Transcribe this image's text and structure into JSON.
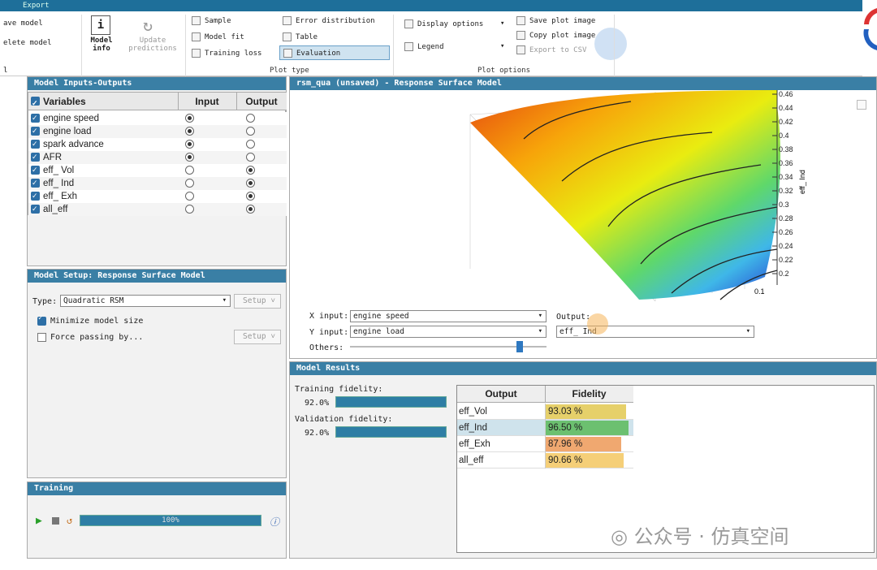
{
  "topbar": {
    "title": "Export"
  },
  "ribbon": {
    "left_items": [
      "ave model",
      "elete model",
      "l"
    ],
    "model_info": "Model\ninfo",
    "update_predictions": "Update\npredictions",
    "plot_type_items": [
      "Sample",
      "Model fit",
      "Training loss",
      "Error distribution",
      "Table",
      "Evaluation"
    ],
    "plot_type_label": "Plot type",
    "plot_option_items": [
      "Display options",
      "Legend",
      "Save plot image",
      "Copy plot image",
      "Export to CSV"
    ],
    "plot_options_label": "Plot options"
  },
  "inputs_outputs": {
    "title": "Model Inputs-Outputs",
    "headers": [
      "Variables",
      "Input",
      "Output"
    ],
    "rows": [
      {
        "name": "engine speed",
        "input": true
      },
      {
        "name": "engine load",
        "input": true
      },
      {
        "name": "spark advance",
        "input": true
      },
      {
        "name": "AFR",
        "input": true
      },
      {
        "name": "eff_ Vol",
        "input": false
      },
      {
        "name": "eff_ Ind",
        "input": false
      },
      {
        "name": "eff_ Exh",
        "input": false
      },
      {
        "name": "all_eff",
        "input": false
      }
    ]
  },
  "plot": {
    "title": "rsm_qua (unsaved) - Response Surface Model",
    "z_label": "eff_ Ind",
    "z_ticks": [
      "0.46",
      "0.44",
      "0.42",
      "0.4",
      "0.38",
      "0.36",
      "0.34",
      "0.32",
      "0.3",
      "0.28",
      "0.26",
      "0.24",
      "0.22",
      "0.2"
    ],
    "x_tick": "0.1"
  },
  "axis_controls": {
    "x_label": "X input:",
    "x_value": "engine speed",
    "y_label": "Y input:",
    "y_value": "engine load",
    "others_label": "Others:",
    "output_label": "Output:",
    "output_value": "eff_ Ind"
  },
  "setup": {
    "title": "Model Setup: Response Surface Model",
    "type_label": "Type:",
    "type_value": "Quadratic RSM",
    "setup_btn": "Setup",
    "minimize": "Minimize model size",
    "force": "Force passing by..."
  },
  "training": {
    "title": "Training",
    "progress": "100%",
    "progress_value": 1.0
  },
  "results": {
    "title": "Model Results",
    "training_fidelity_label": "Training fidelity:",
    "training_fidelity": "92.0%",
    "validation_fidelity_label": "Validation fidelity:",
    "validation_fidelity": "92.0%",
    "headers": [
      "Output",
      "Fidelity"
    ],
    "rows": [
      {
        "output": "eff_Vol",
        "fidelity": "93.03 %",
        "color": "#e6d06a",
        "frac": 0.93
      },
      {
        "output": "eff_Ind",
        "fidelity": "96.50 %",
        "color": "#6cc070",
        "frac": 0.965
      },
      {
        "output": "eff_Exh",
        "fidelity": "87.96 %",
        "color": "#f0a870",
        "frac": 0.88
      },
      {
        "output": "all_eff",
        "fidelity": "90.66 %",
        "color": "#f5cf78",
        "frac": 0.907
      }
    ]
  },
  "watermark": "公众号 · 仿真空间"
}
